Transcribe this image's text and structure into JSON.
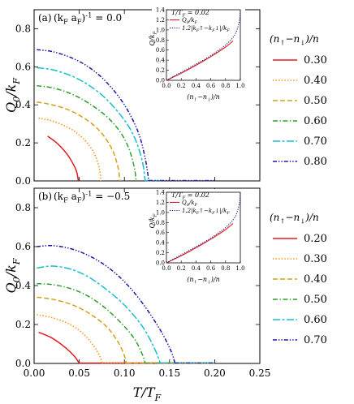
{
  "figure": {
    "shared_xlabel": "T/T_F",
    "x_ticks": [
      "0.00",
      "0.05",
      "0.10",
      "0.15",
      "0.20",
      "0.25"
    ]
  },
  "chart_data": [
    {
      "type": "line",
      "panel_label": "(a)",
      "interaction_label": "(k_F a_F)^{-1} = 0.0",
      "xlabel": "T/T_F",
      "ylabel": "Q_0/k_F",
      "xlim": [
        0.0,
        0.25
      ],
      "ylim": [
        0.0,
        0.9
      ],
      "x_ticks": [
        0.0,
        0.05,
        0.1,
        0.15,
        0.2,
        0.25
      ],
      "y_ticks": [
        0.0,
        0.2,
        0.4,
        0.6,
        0.8
      ],
      "legend_title": "(n↑−n↓)/n",
      "legend_position": "right",
      "series": [
        {
          "name": "0.30",
          "color": "#e31a1c",
          "dash": "solid",
          "x": [
            0.015,
            0.025,
            0.035,
            0.042,
            0.047,
            0.049
          ],
          "y": [
            0.235,
            0.2,
            0.15,
            0.1,
            0.05,
            0.0
          ],
          "tail_end": 0.049
        },
        {
          "name": "0.40",
          "color": "#ff8c00",
          "dash": "dotted",
          "x": [
            0.005,
            0.02,
            0.04,
            0.055,
            0.066,
            0.072,
            0.074
          ],
          "y": [
            0.33,
            0.315,
            0.275,
            0.22,
            0.15,
            0.07,
            0.0
          ],
          "tail_end": 0.074
        },
        {
          "name": "0.50",
          "color": "#d4a017",
          "dash": "dashed",
          "x": [
            0.003,
            0.02,
            0.04,
            0.06,
            0.075,
            0.087,
            0.093,
            0.095
          ],
          "y": [
            0.415,
            0.4,
            0.37,
            0.315,
            0.25,
            0.16,
            0.07,
            0.0
          ],
          "tail_end": 0.095
        },
        {
          "name": "0.60",
          "color": "#2ca02c",
          "dash": "dashdot",
          "x": [
            0.003,
            0.02,
            0.04,
            0.06,
            0.08,
            0.095,
            0.105,
            0.111,
            0.113
          ],
          "y": [
            0.5,
            0.49,
            0.46,
            0.41,
            0.34,
            0.26,
            0.17,
            0.07,
            0.0
          ],
          "tail_end": 0.113
        },
        {
          "name": "0.70",
          "color": "#17becf",
          "dash": "longdash",
          "x": [
            0.003,
            0.02,
            0.04,
            0.06,
            0.08,
            0.1,
            0.112,
            0.12,
            0.123
          ],
          "y": [
            0.595,
            0.585,
            0.555,
            0.505,
            0.43,
            0.32,
            0.22,
            0.1,
            0.0
          ],
          "tail_end": 0.14
        },
        {
          "name": "0.80",
          "color": "#1a1aa6",
          "dash": "dashdotdot",
          "x": [
            0.003,
            0.02,
            0.04,
            0.06,
            0.08,
            0.1,
            0.115,
            0.123,
            0.127
          ],
          "y": [
            0.69,
            0.68,
            0.65,
            0.6,
            0.52,
            0.4,
            0.26,
            0.12,
            0.0
          ],
          "tail_end": 0.2
        }
      ],
      "inset": {
        "type": "line",
        "title": "T/T_F = 0.02",
        "xlabel": "(n↑−n↓)/n",
        "ylabel": "Q/k_F",
        "xlim": [
          0.0,
          1.0
        ],
        "ylim": [
          0.0,
          1.4
        ],
        "x_ticks": [
          0.0,
          0.2,
          0.4,
          0.6,
          0.8,
          1.0
        ],
        "y_ticks": [
          0.0,
          0.2,
          0.4,
          0.6,
          0.8,
          1.0,
          1.2,
          1.4
        ],
        "series": [
          {
            "name": "Q_0/k_F",
            "color": "#e31a1c",
            "dash": "solid",
            "x": [
              0.0,
              0.2,
              0.4,
              0.6,
              0.8,
              0.9
            ],
            "y": [
              0.0,
              0.14,
              0.3,
              0.47,
              0.66,
              0.78
            ]
          },
          {
            "name": "1.2|k_F↑−k_F↓|/k_F",
            "color": "#1a1aa6",
            "dash": "dotted",
            "x": [
              0.0,
              0.2,
              0.4,
              0.6,
              0.8,
              0.9,
              0.95,
              0.99,
              1.0
            ],
            "y": [
              0.0,
              0.16,
              0.32,
              0.49,
              0.7,
              0.85,
              0.98,
              1.2,
              1.4
            ]
          }
        ]
      }
    },
    {
      "type": "line",
      "panel_label": "(b)",
      "interaction_label": "(k_F a_F)^{-1} = −0.5",
      "xlabel": "T/T_F",
      "ylabel": "Q_0/k_F",
      "xlim": [
        0.0,
        0.25
      ],
      "ylim": [
        0.0,
        0.9
      ],
      "x_ticks": [
        0.0,
        0.05,
        0.1,
        0.15,
        0.2,
        0.25
      ],
      "y_ticks": [
        0.0,
        0.2,
        0.4,
        0.6,
        0.8
      ],
      "legend_title": "(n↑−n↓)/n",
      "legend_position": "right",
      "series": [
        {
          "name": "0.20",
          "color": "#e31a1c",
          "dash": "solid",
          "x": [
            0.005,
            0.02,
            0.035,
            0.045,
            0.05
          ],
          "y": [
            0.16,
            0.13,
            0.08,
            0.035,
            0.0
          ],
          "tail_end": 0.2
        },
        {
          "name": "0.30",
          "color": "#ff8c00",
          "dash": "dotted",
          "x": [
            0.003,
            0.02,
            0.04,
            0.055,
            0.066,
            0.073,
            0.075
          ],
          "y": [
            0.25,
            0.235,
            0.2,
            0.15,
            0.09,
            0.035,
            0.0
          ],
          "tail_end": 0.2
        },
        {
          "name": "0.40",
          "color": "#d4a017",
          "dash": "dashed",
          "x": [
            0.003,
            0.02,
            0.04,
            0.06,
            0.08,
            0.093,
            0.1,
            0.102
          ],
          "y": [
            0.34,
            0.33,
            0.305,
            0.26,
            0.19,
            0.11,
            0.04,
            0.0
          ],
          "tail_end": 0.2
        },
        {
          "name": "0.50",
          "color": "#2ca02c",
          "dash": "dashdot",
          "x": [
            0.003,
            0.02,
            0.04,
            0.06,
            0.08,
            0.1,
            0.112,
            0.12,
            0.123
          ],
          "y": [
            0.41,
            0.405,
            0.385,
            0.345,
            0.28,
            0.19,
            0.12,
            0.045,
            0.0
          ],
          "tail_end": 0.2
        },
        {
          "name": "0.60",
          "color": "#17becf",
          "dash": "longdash",
          "x": [
            0.003,
            0.02,
            0.04,
            0.06,
            0.08,
            0.1,
            0.12,
            0.133,
            0.14
          ],
          "y": [
            0.49,
            0.5,
            0.485,
            0.445,
            0.38,
            0.3,
            0.19,
            0.08,
            0.0
          ],
          "tail_end": 0.2
        },
        {
          "name": "0.70",
          "color": "#1a1aa6",
          "dash": "dashdotdot",
          "x": [
            0.003,
            0.02,
            0.04,
            0.06,
            0.08,
            0.1,
            0.12,
            0.14,
            0.152,
            0.156
          ],
          "y": [
            0.6,
            0.605,
            0.59,
            0.555,
            0.5,
            0.42,
            0.31,
            0.17,
            0.06,
            0.0
          ],
          "tail_end": 0.2
        }
      ],
      "inset": {
        "type": "line",
        "title": "T/T_F = 0.02",
        "xlabel": "(n↑−n↓)/n",
        "ylabel": "Q/k_F",
        "xlim": [
          0.0,
          1.0
        ],
        "ylim": [
          0.0,
          1.4
        ],
        "x_ticks": [
          0.0,
          0.2,
          0.4,
          0.6,
          0.8,
          1.0
        ],
        "y_ticks": [
          0.0,
          0.2,
          0.4,
          0.6,
          0.8,
          1.0,
          1.2,
          1.4
        ],
        "series": [
          {
            "name": "Q_0/k_F",
            "color": "#e31a1c",
            "dash": "solid",
            "x": [
              0.0,
              0.2,
              0.4,
              0.6,
              0.8,
              0.9
            ],
            "y": [
              0.0,
              0.14,
              0.3,
              0.47,
              0.66,
              0.78
            ]
          },
          {
            "name": "1.2|k_F↑−k_F↓|/k_F",
            "color": "#1a1aa6",
            "dash": "dotted",
            "x": [
              0.0,
              0.2,
              0.4,
              0.6,
              0.8,
              0.9,
              0.95,
              0.99,
              1.0
            ],
            "y": [
              0.0,
              0.16,
              0.32,
              0.49,
              0.7,
              0.85,
              0.98,
              1.2,
              1.4
            ]
          }
        ]
      }
    }
  ]
}
